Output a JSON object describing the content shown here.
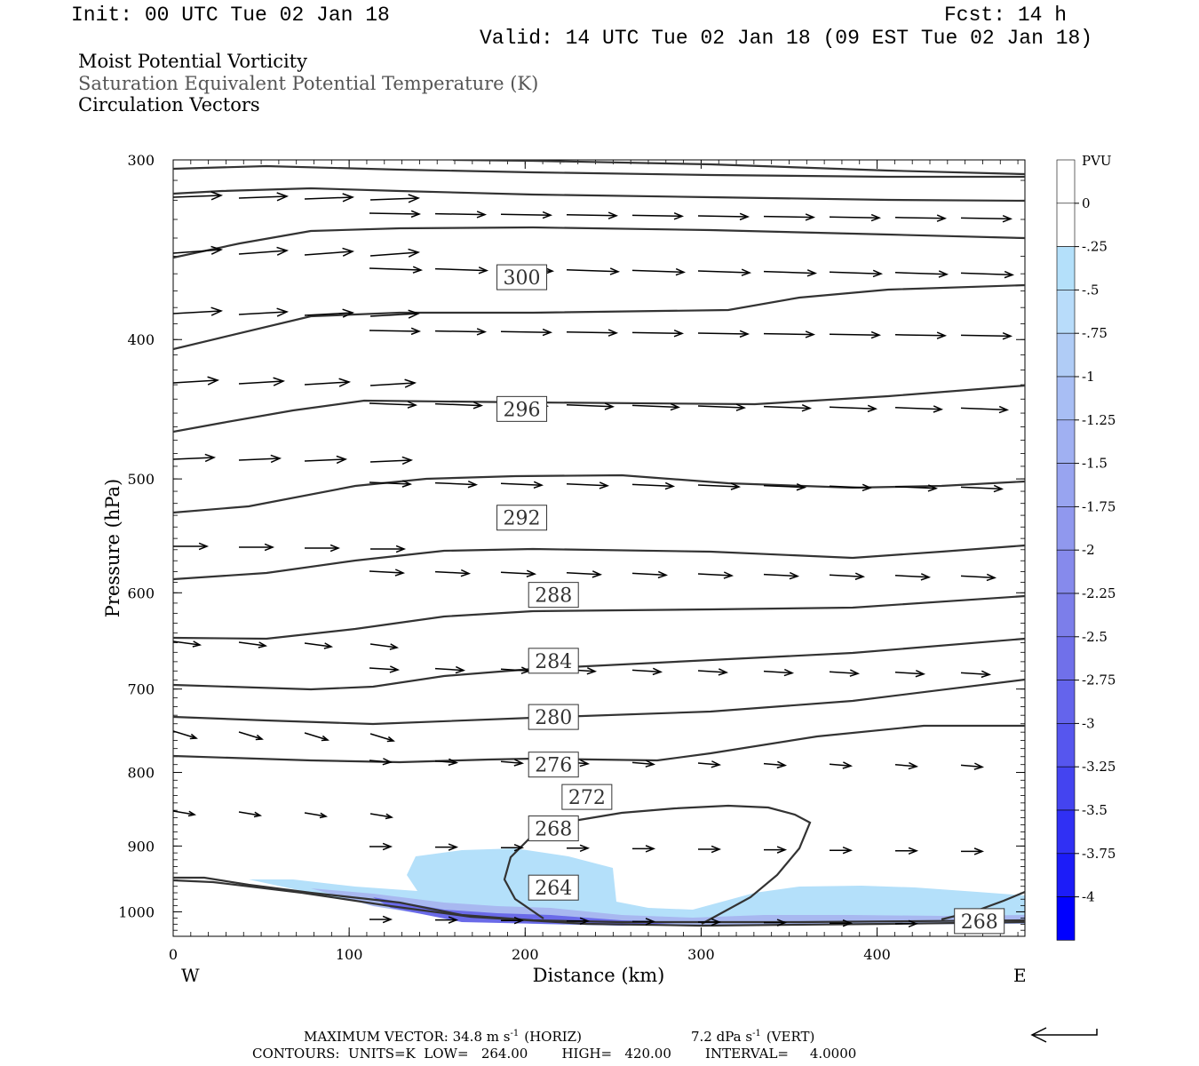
{
  "header": {
    "init": "Init: 00 UTC Tue 02 Jan 18",
    "fcst": "Fcst:   14 h",
    "valid": "Valid: 14 UTC Tue 02 Jan 18 (09 EST Tue 02 Jan 18)",
    "field1": "Moist Potential Vorticity",
    "field2": "Saturation Equivalent Potential Temperature (K)",
    "field3": "Circulation Vectors"
  },
  "colors": {
    "contour": "#333333",
    "shade_light": "#b4e0fa",
    "shade_mid": "#a8b8f0",
    "shade_dark": "#6a6ae8",
    "vector": "#000000"
  },
  "chart_data": {
    "type": "cross-section",
    "xlabel": "Distance (km)",
    "ylabel": "Pressure (hPa)",
    "xlim": [
      0,
      484
    ],
    "ylim": [
      1040,
      300
    ],
    "y_scale": "log",
    "x_ticks": [
      "0",
      "100",
      "200",
      "300",
      "400"
    ],
    "x_tick_values": [
      0,
      100,
      200,
      300,
      400
    ],
    "y_ticks": [
      "300",
      "400",
      "500",
      "600",
      "700",
      "800",
      "900",
      "1000"
    ],
    "y_tick_values": [
      300,
      400,
      500,
      600,
      700,
      800,
      900,
      1000
    ],
    "west_label": "W",
    "east_label": "E",
    "colorbar": {
      "unit": "PVU",
      "labels": [
        "0",
        "-.25",
        "-.5",
        "-.75",
        "-1",
        "-1.25",
        "-1.5",
        "-1.75",
        "-2",
        "-2.25",
        "-2.5",
        "-2.75",
        "-3",
        "-3.25",
        "-3.5",
        "-3.75",
        "-4"
      ],
      "colors": [
        "#ffffff",
        "#ffffff",
        "#b4e0fa",
        "#b8dcfa",
        "#b0ccf6",
        "#a8bef4",
        "#a0b0f2",
        "#98a4f0",
        "#9098ee",
        "#868aec",
        "#7c7eea",
        "#7070ea",
        "#6464ec",
        "#5656ee",
        "#4444f0",
        "#3030f4",
        "#1c1cf8",
        "#0000ff"
      ]
    },
    "contour_labels": [
      {
        "text": "300",
        "x": 186,
        "p": 362
      },
      {
        "text": "296",
        "x": 186,
        "p": 447
      },
      {
        "text": "292",
        "x": 186,
        "p": 532
      },
      {
        "text": "288",
        "x": 204,
        "p": 602
      },
      {
        "text": "284",
        "x": 204,
        "p": 669
      },
      {
        "text": "280",
        "x": 204,
        "p": 732
      },
      {
        "text": "276",
        "x": 204,
        "p": 790
      },
      {
        "text": "272",
        "x": 223,
        "p": 832
      },
      {
        "text": "268",
        "x": 204,
        "p": 875
      },
      {
        "text": "264",
        "x": 204,
        "p": 962
      },
      {
        "text": "268",
        "x": 446,
        "p": 1015
      }
    ],
    "max_vector_line": "MAXIMUM VECTOR:  34.8 m s",
    "horiz_label": "(HORIZ)",
    "vert_value": "7.2 dPa s",
    "vert_label": "(VERT)",
    "exponent": "-1",
    "contours_line": "CONTOURS:  UNITS=K  LOW=   264.00        HIGH=   420.00        INTERVAL=     4.0000"
  }
}
